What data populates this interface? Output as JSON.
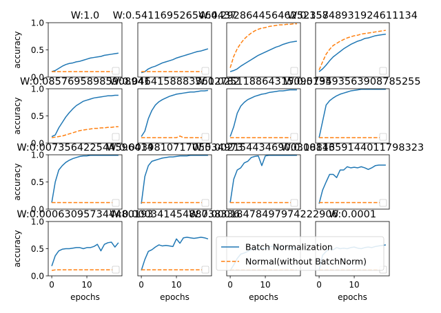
{
  "chart_data": {
    "type": "line",
    "layout": {
      "rows": 4,
      "cols": 4
    },
    "x": [
      0,
      1,
      2,
      3,
      4,
      5,
      6,
      7,
      8,
      9,
      10,
      11,
      12,
      13,
      14,
      15,
      16,
      17,
      18,
      19
    ],
    "xlim": [
      -1,
      20
    ],
    "ylim": [
      0,
      1
    ],
    "xticks": [
      0,
      10
    ],
    "yticks": [
      0.0,
      0.5,
      1.0
    ],
    "xlabel": "epochs",
    "ylabel": "accuracy",
    "colors": {
      "Batch Normalization": "#1f77b4",
      "Normal(without BatchNorm)": "#ff7f0e"
    },
    "legend": {
      "panel": 14,
      "entries": [
        {
          "label": "Batch Normalization",
          "style": "solid",
          "color": "#1f77b4"
        },
        {
          "label": "Normal(without BatchNorm)",
          "style": "dashed",
          "color": "#ff7f0e"
        }
      ]
    },
    "panels": [
      {
        "title": "W:1.0",
        "series": [
          {
            "name": "Batch Normalization",
            "values": [
              0.1,
              0.12,
              0.16,
              0.2,
              0.23,
              0.25,
              0.26,
              0.28,
              0.29,
              0.31,
              0.33,
              0.35,
              0.36,
              0.37,
              0.38,
              0.4,
              0.41,
              0.42,
              0.43,
              0.44
            ]
          },
          {
            "name": "Normal(without BatchNorm)",
            "values": [
              0.1,
              0.1,
              0.1,
              0.1,
              0.1,
              0.1,
              0.1,
              0.1,
              0.1,
              0.1,
              0.1,
              0.1,
              0.1,
              0.1,
              0.1,
              0.1,
              0.1,
              0.1,
              0.1,
              0.1
            ]
          }
        ]
      },
      {
        "title": "W:0.5411695265464437",
        "series": [
          {
            "name": "Batch Normalization",
            "values": [
              0.08,
              0.1,
              0.15,
              0.18,
              0.2,
              0.23,
              0.26,
              0.28,
              0.3,
              0.32,
              0.35,
              0.37,
              0.39,
              0.41,
              0.43,
              0.45,
              0.47,
              0.48,
              0.5,
              0.52
            ]
          },
          {
            "name": "Normal(without BatchNorm)",
            "values": [
              0.1,
              0.1,
              0.1,
              0.1,
              0.1,
              0.1,
              0.1,
              0.1,
              0.1,
              0.1,
              0.1,
              0.1,
              0.1,
              0.1,
              0.1,
              0.1,
              0.1,
              0.1,
              0.1,
              0.1
            ]
          }
        ]
      },
      {
        "title": "W:0.29286445646252357",
        "series": [
          {
            "name": "Batch Normalization",
            "values": [
              0.1,
              0.12,
              0.15,
              0.2,
              0.24,
              0.28,
              0.32,
              0.36,
              0.4,
              0.43,
              0.46,
              0.49,
              0.52,
              0.55,
              0.57,
              0.6,
              0.62,
              0.64,
              0.65,
              0.66
            ]
          },
          {
            "name": "Normal(without BatchNorm)",
            "values": [
              0.17,
              0.38,
              0.52,
              0.62,
              0.7,
              0.76,
              0.81,
              0.85,
              0.88,
              0.9,
              0.91,
              0.93,
              0.94,
              0.95,
              0.96,
              0.96,
              0.97,
              0.97,
              0.98,
              0.98
            ]
          }
        ]
      },
      {
        "title": "W:0.15848931924611134",
        "series": [
          {
            "name": "Batch Normalization",
            "values": [
              0.1,
              0.15,
              0.22,
              0.3,
              0.37,
              0.42,
              0.47,
              0.52,
              0.56,
              0.6,
              0.63,
              0.66,
              0.68,
              0.71,
              0.72,
              0.74,
              0.76,
              0.77,
              0.78,
              0.79
            ]
          },
          {
            "name": "Normal(without BatchNorm)",
            "values": [
              0.13,
              0.28,
              0.42,
              0.51,
              0.58,
              0.62,
              0.66,
              0.69,
              0.72,
              0.74,
              0.76,
              0.77,
              0.79,
              0.8,
              0.81,
              0.82,
              0.83,
              0.84,
              0.85,
              0.86
            ]
          }
        ]
      },
      {
        "title": "W:0.08576958985908941",
        "series": [
          {
            "name": "Batch Normalization",
            "values": [
              0.12,
              0.15,
              0.28,
              0.38,
              0.48,
              0.56,
              0.63,
              0.69,
              0.73,
              0.77,
              0.79,
              0.81,
              0.83,
              0.84,
              0.85,
              0.86,
              0.87,
              0.87,
              0.88,
              0.88
            ]
          },
          {
            "name": "Normal(without BatchNorm)",
            "values": [
              0.1,
              0.11,
              0.12,
              0.13,
              0.15,
              0.17,
              0.19,
              0.21,
              0.23,
              0.24,
              0.25,
              0.26,
              0.27,
              0.27,
              0.28,
              0.28,
              0.29,
              0.29,
              0.3,
              0.3
            ]
          }
        ]
      },
      {
        "title": "W:0.04641588833612782",
        "series": [
          {
            "name": "Batch Normalization",
            "values": [
              0.12,
              0.22,
              0.45,
              0.6,
              0.7,
              0.76,
              0.8,
              0.83,
              0.86,
              0.88,
              0.9,
              0.91,
              0.92,
              0.93,
              0.94,
              0.94,
              0.95,
              0.96,
              0.96,
              0.97
            ]
          },
          {
            "name": "Normal(without BatchNorm)",
            "values": [
              0.1,
              0.1,
              0.1,
              0.1,
              0.1,
              0.1,
              0.1,
              0.1,
              0.1,
              0.1,
              0.1,
              0.13,
              0.1,
              0.1,
              0.1,
              0.1,
              0.1,
              0.1,
              0.1,
              0.1
            ]
          }
        ]
      },
      {
        "title": "W:0.025118864315095794",
        "series": [
          {
            "name": "Batch Normalization",
            "values": [
              0.12,
              0.3,
              0.55,
              0.68,
              0.75,
              0.8,
              0.83,
              0.86,
              0.88,
              0.9,
              0.91,
              0.93,
              0.94,
              0.95,
              0.96,
              0.96,
              0.97,
              0.98,
              0.98,
              0.98
            ]
          },
          {
            "name": "Normal(without BatchNorm)",
            "values": [
              0.1,
              0.1,
              0.1,
              0.1,
              0.1,
              0.1,
              0.1,
              0.1,
              0.1,
              0.1,
              0.1,
              0.1,
              0.1,
              0.1,
              0.1,
              0.1,
              0.1,
              0.1,
              0.1,
              0.1
            ]
          }
        ]
      },
      {
        "title": "W:0.013593563908785255",
        "series": [
          {
            "name": "Batch Normalization",
            "values": [
              0.1,
              0.4,
              0.7,
              0.78,
              0.83,
              0.87,
              0.9,
              0.92,
              0.94,
              0.96,
              0.97,
              0.98,
              0.99,
              0.99,
              0.99,
              0.99,
              0.99,
              0.99,
              0.99,
              0.99
            ]
          },
          {
            "name": "Normal(without BatchNorm)",
            "values": [
              0.1,
              0.1,
              0.1,
              0.1,
              0.1,
              0.1,
              0.1,
              0.1,
              0.1,
              0.1,
              0.1,
              0.1,
              0.1,
              0.1,
              0.1,
              0.1,
              0.1,
              0.1,
              0.1,
              0.1
            ]
          }
        ]
      },
      {
        "title": "W:0.007356422544596414",
        "series": [
          {
            "name": "Batch Normalization",
            "values": [
              0.12,
              0.5,
              0.72,
              0.8,
              0.86,
              0.9,
              0.93,
              0.95,
              0.97,
              0.98,
              0.98,
              0.99,
              0.99,
              0.99,
              0.99,
              0.99,
              0.99,
              0.99,
              0.99,
              0.99
            ]
          },
          {
            "name": "Normal(without BatchNorm)",
            "values": [
              0.12,
              0.12,
              0.12,
              0.12,
              0.12,
              0.12,
              0.12,
              0.12,
              0.12,
              0.12,
              0.12,
              0.12,
              0.12,
              0.12,
              0.12,
              0.12,
              0.12,
              0.12,
              0.12,
              0.12
            ]
          }
        ]
      },
      {
        "title": "W:0.003981071705534973",
        "series": [
          {
            "name": "Batch Normalization",
            "values": [
              0.1,
              0.6,
              0.8,
              0.88,
              0.9,
              0.92,
              0.94,
              0.95,
              0.96,
              0.96,
              0.97,
              0.98,
              0.98,
              0.98,
              0.99,
              0.99,
              0.99,
              0.99,
              0.99,
              0.99
            ]
          },
          {
            "name": "Normal(without BatchNorm)",
            "values": [
              0.12,
              0.12,
              0.12,
              0.12,
              0.12,
              0.12,
              0.12,
              0.12,
              0.12,
              0.12,
              0.12,
              0.12,
              0.12,
              0.12,
              0.12,
              0.12,
              0.12,
              0.12,
              0.12,
              0.12
            ]
          }
        ]
      },
      {
        "title": "W:0.0021544346900318843",
        "series": [
          {
            "name": "Batch Normalization",
            "values": [
              0.12,
              0.55,
              0.72,
              0.76,
              0.85,
              0.88,
              0.95,
              0.97,
              0.98,
              0.8,
              0.98,
              0.99,
              0.99,
              0.99,
              0.99,
              0.99,
              0.99,
              0.99,
              0.99,
              0.99
            ]
          },
          {
            "name": "Normal(without BatchNorm)",
            "values": [
              0.12,
              0.12,
              0.12,
              0.12,
              0.12,
              0.12,
              0.12,
              0.12,
              0.12,
              0.12,
              0.12,
              0.12,
              0.12,
              0.12,
              0.12,
              0.12,
              0.12,
              0.12,
              0.12,
              0.12
            ]
          }
        ]
      },
      {
        "title": "W:0.0011659144011798323",
        "series": [
          {
            "name": "Batch Normalization",
            "values": [
              0.1,
              0.35,
              0.5,
              0.64,
              0.64,
              0.58,
              0.72,
              0.72,
              0.78,
              0.76,
              0.77,
              0.76,
              0.78,
              0.76,
              0.73,
              0.76,
              0.8,
              0.81,
              0.81,
              0.81
            ]
          },
          {
            "name": "Normal(without BatchNorm)",
            "values": [
              0.12,
              0.12,
              0.12,
              0.12,
              0.12,
              0.12,
              0.12,
              0.12,
              0.12,
              0.12,
              0.12,
              0.12,
              0.12,
              0.12,
              0.12,
              0.12,
              0.12,
              0.12,
              0.12,
              0.12
            ]
          }
        ]
      },
      {
        "title": "W:0.000630957344480193",
        "series": [
          {
            "name": "Batch Normalization",
            "values": [
              0.18,
              0.37,
              0.46,
              0.49,
              0.5,
              0.5,
              0.51,
              0.52,
              0.52,
              0.5,
              0.52,
              0.52,
              0.54,
              0.58,
              0.46,
              0.58,
              0.61,
              0.62,
              0.53,
              0.61
            ]
          },
          {
            "name": "Normal(without BatchNorm)",
            "values": [
              0.1,
              0.11,
              0.11,
              0.11,
              0.11,
              0.11,
              0.11,
              0.11,
              0.11,
              0.11,
              0.11,
              0.11,
              0.11,
              0.11,
              0.11,
              0.11,
              0.11,
              0.11,
              0.11,
              0.11
            ]
          }
        ]
      },
      {
        "title": "W:0.00034145488738336",
        "series": [
          {
            "name": "Batch Normalization",
            "values": [
              0.1,
              0.3,
              0.45,
              0.48,
              0.53,
              0.57,
              0.55,
              0.56,
              0.55,
              0.54,
              0.68,
              0.6,
              0.7,
              0.71,
              0.7,
              0.69,
              0.7,
              0.71,
              0.7,
              0.68
            ]
          },
          {
            "name": "Normal(without BatchNorm)",
            "values": [
              0.11,
              0.11,
              0.11,
              0.11,
              0.11,
              0.11,
              0.11,
              0.11,
              0.11,
              0.11,
              0.11,
              0.11,
              0.11,
              0.11,
              0.11,
              0.11,
              0.11,
              0.11,
              0.11,
              0.11
            ]
          }
        ]
      },
      {
        "title": "W:0.00018478497974222906",
        "series": [
          {
            "name": "Batch Normalization",
            "values": [
              0.1,
              0.2,
              0.32,
              0.4,
              0.42,
              0.45,
              0.48,
              0.5,
              0.5,
              0.51,
              0.5,
              0.52,
              0.55,
              0.5,
              0.52,
              0.55,
              0.52,
              0.5,
              0.52,
              0.51
            ]
          },
          {
            "name": "Normal(without BatchNorm)",
            "values": [
              0.11,
              0.11,
              0.11,
              0.11,
              0.11,
              0.11,
              0.11,
              0.11,
              0.11,
              0.11,
              0.11,
              0.11,
              0.11,
              0.11,
              0.11,
              0.11,
              0.11,
              0.11,
              0.11,
              0.11
            ]
          }
        ]
      },
      {
        "title": "W:0.0001",
        "series": [
          {
            "name": "Batch Normalization",
            "values": [
              0.1,
              0.38,
              0.45,
              0.5,
              0.48,
              0.52,
              0.5,
              0.51,
              0.5,
              0.52,
              0.53,
              0.51,
              0.5,
              0.52,
              0.53,
              0.52,
              0.54,
              0.55,
              0.56,
              0.57
            ]
          },
          {
            "name": "Normal(without BatchNorm)",
            "values": [
              0.11,
              0.11,
              0.11,
              0.11,
              0.11,
              0.11,
              0.11,
              0.11,
              0.11,
              0.11,
              0.11,
              0.11,
              0.11,
              0.11,
              0.11,
              0.11,
              0.11,
              0.11,
              0.11,
              0.11
            ]
          }
        ]
      }
    ]
  }
}
